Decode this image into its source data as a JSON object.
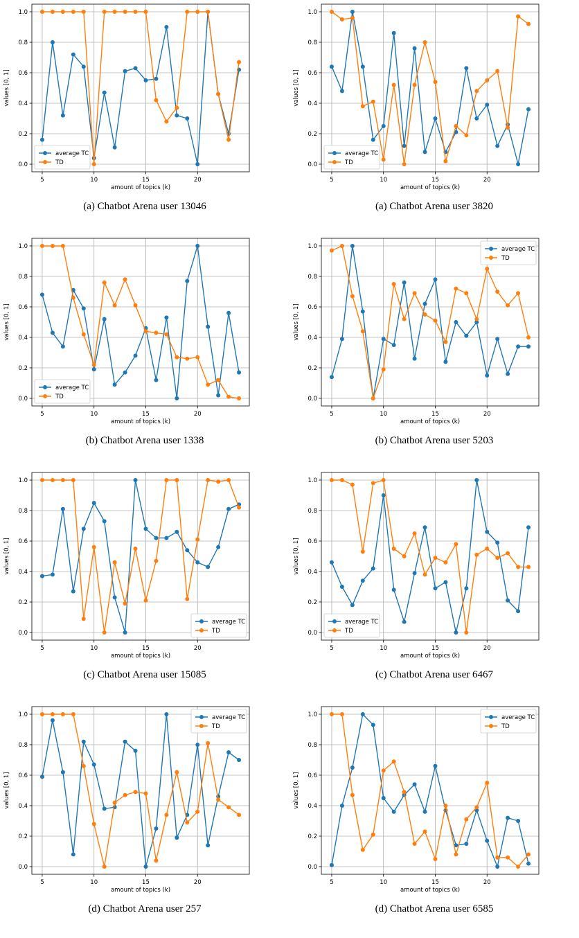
{
  "colors": {
    "tc": "#1f77b4",
    "td": "#ff7f0e",
    "grid": "#b0b0b0",
    "axis": "#000000"
  },
  "chart_data": [
    {
      "type": "line",
      "caption": "(a) Chatbot Arena user 13046",
      "xlabel": "amount of topics (k)",
      "ylabel": "values [0, 1]",
      "xlim": [
        4,
        25
      ],
      "ylim": [
        -0.05,
        1.05
      ],
      "xticks": [
        5,
        10,
        15,
        20
      ],
      "yticks": [
        "0.0",
        "0.2",
        "0.4",
        "0.6",
        "0.8",
        "1.0"
      ],
      "grid": true,
      "legend_position": "lower-left",
      "x": [
        5,
        6,
        7,
        8,
        9,
        10,
        11,
        12,
        13,
        14,
        15,
        16,
        17,
        18,
        19,
        20,
        21,
        22,
        23,
        24
      ],
      "series": [
        {
          "name": "average TC",
          "values": [
            0.16,
            0.8,
            0.32,
            0.72,
            0.64,
            0.04,
            0.47,
            0.11,
            0.61,
            0.63,
            0.55,
            0.56,
            0.9,
            0.32,
            0.3,
            0.0,
            1.0,
            0.46,
            0.2,
            0.62
          ]
        },
        {
          "name": "TD",
          "values": [
            1.0,
            1.0,
            1.0,
            1.0,
            1.0,
            0.0,
            1.0,
            1.0,
            1.0,
            1.0,
            1.0,
            0.42,
            0.28,
            0.37,
            1.0,
            1.0,
            1.0,
            0.46,
            0.16,
            0.67
          ]
        }
      ]
    },
    {
      "type": "line",
      "caption": "(a) Chatbot Arena user 3820",
      "xlabel": "amount of topics (k)",
      "ylabel": "values [0, 1]",
      "xlim": [
        4,
        25
      ],
      "ylim": [
        -0.05,
        1.05
      ],
      "xticks": [
        5,
        10,
        15,
        20
      ],
      "yticks": [
        "0.0",
        "0.2",
        "0.4",
        "0.6",
        "0.8",
        "1.0"
      ],
      "grid": true,
      "legend_position": "lower-left",
      "x": [
        5,
        6,
        7,
        8,
        9,
        10,
        11,
        12,
        13,
        14,
        15,
        16,
        17,
        18,
        19,
        20,
        21,
        22,
        23,
        24
      ],
      "series": [
        {
          "name": "average TC",
          "values": [
            0.64,
            0.48,
            1.0,
            0.64,
            0.16,
            0.25,
            0.86,
            0.12,
            0.76,
            0.08,
            0.3,
            0.08,
            0.21,
            0.63,
            0.3,
            0.39,
            0.12,
            0.26,
            0.0,
            0.36
          ]
        },
        {
          "name": "TD",
          "values": [
            1.0,
            0.95,
            0.96,
            0.38,
            0.41,
            0.03,
            0.52,
            0.0,
            0.52,
            0.8,
            0.54,
            0.02,
            0.25,
            0.19,
            0.48,
            0.55,
            0.61,
            0.24,
            0.97,
            0.92
          ]
        }
      ]
    },
    {
      "type": "line",
      "caption": "(b) Chatbot Arena user 1338",
      "xlabel": "amount of topics (k)",
      "ylabel": "values [0, 1]",
      "xlim": [
        4,
        25
      ],
      "ylim": [
        -0.05,
        1.05
      ],
      "xticks": [
        5,
        10,
        15,
        20
      ],
      "yticks": [
        "0.0",
        "0.2",
        "0.4",
        "0.6",
        "0.8",
        "1.0"
      ],
      "grid": true,
      "legend_position": "lower-left",
      "x": [
        5,
        6,
        7,
        8,
        9,
        10,
        11,
        12,
        13,
        14,
        15,
        16,
        17,
        18,
        19,
        20,
        21,
        22,
        23,
        24
      ],
      "series": [
        {
          "name": "average TC",
          "values": [
            0.68,
            0.43,
            0.34,
            0.71,
            0.59,
            0.19,
            0.52,
            0.09,
            0.17,
            0.28,
            0.46,
            0.12,
            0.53,
            0.0,
            0.77,
            1.0,
            0.47,
            0.02,
            0.56,
            0.17
          ]
        },
        {
          "name": "TD",
          "values": [
            1.0,
            1.0,
            1.0,
            0.66,
            0.42,
            0.22,
            0.76,
            0.61,
            0.78,
            0.61,
            0.44,
            0.43,
            0.42,
            0.27,
            0.26,
            0.27,
            0.09,
            0.12,
            0.01,
            0.0
          ]
        }
      ]
    },
    {
      "type": "line",
      "caption": "(b) Chatbot Arena user 5203",
      "xlabel": "amount of topics (k)",
      "ylabel": "values [0, 1]",
      "xlim": [
        4,
        25
      ],
      "ylim": [
        -0.05,
        1.05
      ],
      "xticks": [
        5,
        10,
        15,
        20
      ],
      "yticks": [
        "0.0",
        "0.2",
        "0.4",
        "0.6",
        "0.8",
        "1.0"
      ],
      "grid": true,
      "legend_position": "top-right",
      "x": [
        5,
        6,
        7,
        8,
        9,
        10,
        11,
        12,
        13,
        14,
        15,
        16,
        17,
        18,
        19,
        20,
        21,
        22,
        23,
        24
      ],
      "series": [
        {
          "name": "average TC",
          "values": [
            0.14,
            0.39,
            1.0,
            0.57,
            0.0,
            0.39,
            0.35,
            0.76,
            0.26,
            0.62,
            0.78,
            0.24,
            0.5,
            0.41,
            0.5,
            0.15,
            0.39,
            0.16,
            0.34,
            0.34
          ]
        },
        {
          "name": "TD",
          "values": [
            0.97,
            1.0,
            0.67,
            0.44,
            0.0,
            0.19,
            0.75,
            0.52,
            0.69,
            0.55,
            0.51,
            0.37,
            0.72,
            0.69,
            0.52,
            0.85,
            0.7,
            0.61,
            0.69,
            0.4
          ]
        }
      ]
    },
    {
      "type": "line",
      "caption": "(c) Chatbot Arena user 15085",
      "xlabel": "amount of topics (k)",
      "ylabel": "values [0, 1]",
      "xlim": [
        4,
        25
      ],
      "ylim": [
        -0.05,
        1.05
      ],
      "xticks": [
        5,
        10,
        15,
        20
      ],
      "yticks": [
        "0.0",
        "0.2",
        "0.4",
        "0.6",
        "0.8",
        "1.0"
      ],
      "grid": true,
      "legend_position": "lower-right",
      "x": [
        5,
        6,
        7,
        8,
        9,
        10,
        11,
        12,
        13,
        14,
        15,
        16,
        17,
        18,
        19,
        20,
        21,
        22,
        23,
        24
      ],
      "series": [
        {
          "name": "average TC",
          "values": [
            0.37,
            0.38,
            0.81,
            0.27,
            0.68,
            0.85,
            0.73,
            0.23,
            0.0,
            1.0,
            0.68,
            0.62,
            0.62,
            0.66,
            0.54,
            0.46,
            0.43,
            0.56,
            0.81,
            0.84
          ]
        },
        {
          "name": "TD",
          "values": [
            1.0,
            1.0,
            1.0,
            1.0,
            0.09,
            0.56,
            0.0,
            0.46,
            0.19,
            0.55,
            0.21,
            0.47,
            1.0,
            1.0,
            0.22,
            0.61,
            1.0,
            0.99,
            1.0,
            0.82
          ]
        }
      ]
    },
    {
      "type": "line",
      "caption": "(c) Chatbot Arena user 6467",
      "xlabel": "amount of topics (k)",
      "ylabel": "values [0, 1]",
      "xlim": [
        4,
        25
      ],
      "ylim": [
        -0.05,
        1.05
      ],
      "xticks": [
        5,
        10,
        15,
        20
      ],
      "yticks": [
        "0.0",
        "0.2",
        "0.4",
        "0.6",
        "0.8",
        "1.0"
      ],
      "grid": true,
      "legend_position": "lower-left",
      "x": [
        5,
        6,
        7,
        8,
        9,
        10,
        11,
        12,
        13,
        14,
        15,
        16,
        17,
        18,
        19,
        20,
        21,
        22,
        23,
        24
      ],
      "series": [
        {
          "name": "average TC",
          "values": [
            0.46,
            0.3,
            0.18,
            0.34,
            0.42,
            0.9,
            0.28,
            0.07,
            0.39,
            0.69,
            0.29,
            0.33,
            0.0,
            0.29,
            1.0,
            0.66,
            0.59,
            0.21,
            0.14,
            0.69
          ]
        },
        {
          "name": "TD",
          "values": [
            1.0,
            1.0,
            0.97,
            0.53,
            0.98,
            1.0,
            0.55,
            0.5,
            0.65,
            0.38,
            0.49,
            0.46,
            0.58,
            0.0,
            0.51,
            0.55,
            0.49,
            0.52,
            0.43,
            0.43
          ]
        }
      ]
    },
    {
      "type": "line",
      "caption": "(d) Chatbot Arena user 257",
      "xlabel": "amount of topics (k)",
      "ylabel": "values [0, 1]",
      "xlim": [
        4,
        25
      ],
      "ylim": [
        -0.05,
        1.05
      ],
      "xticks": [
        5,
        10,
        15,
        20
      ],
      "yticks": [
        "0.0",
        "0.2",
        "0.4",
        "0.6",
        "0.8",
        "1.0"
      ],
      "grid": true,
      "legend_position": "top-right",
      "x": [
        5,
        6,
        7,
        8,
        9,
        10,
        11,
        12,
        13,
        14,
        15,
        16,
        17,
        18,
        19,
        20,
        21,
        22,
        23,
        24
      ],
      "series": [
        {
          "name": "average TC",
          "values": [
            0.59,
            0.96,
            0.62,
            0.08,
            0.82,
            0.67,
            0.38,
            0.39,
            0.82,
            0.76,
            0.0,
            0.25,
            1.0,
            0.19,
            0.34,
            0.8,
            0.14,
            0.46,
            0.75,
            0.7
          ]
        },
        {
          "name": "TD",
          "values": [
            1.0,
            1.0,
            1.0,
            1.0,
            0.66,
            0.28,
            0.0,
            0.42,
            0.47,
            0.49,
            0.48,
            0.04,
            0.34,
            0.62,
            0.29,
            0.36,
            0.81,
            0.44,
            0.39,
            0.34
          ]
        }
      ]
    },
    {
      "type": "line",
      "caption": "(d) Chatbot Arena user 6585",
      "xlabel": "amount of topics (k)",
      "ylabel": "values [0, 1]",
      "xlim": [
        4,
        25
      ],
      "ylim": [
        -0.05,
        1.05
      ],
      "xticks": [
        5,
        10,
        15,
        20
      ],
      "yticks": [
        "0.0",
        "0.2",
        "0.4",
        "0.6",
        "0.8",
        "1.0"
      ],
      "grid": true,
      "legend_position": "top-right",
      "x": [
        5,
        6,
        7,
        8,
        9,
        10,
        11,
        12,
        13,
        14,
        15,
        16,
        17,
        18,
        19,
        20,
        21,
        22,
        23,
        24
      ],
      "series": [
        {
          "name": "average TC",
          "values": [
            0.01,
            0.4,
            0.65,
            1.0,
            0.93,
            0.45,
            0.36,
            0.47,
            0.54,
            0.36,
            0.66,
            0.37,
            0.14,
            0.15,
            0.37,
            0.17,
            0.0,
            0.32,
            0.3,
            0.02
          ]
        },
        {
          "name": "TD",
          "values": [
            1.0,
            1.0,
            0.47,
            0.11,
            0.21,
            0.63,
            0.69,
            0.49,
            0.15,
            0.23,
            0.05,
            0.4,
            0.08,
            0.31,
            0.39,
            0.55,
            0.06,
            0.06,
            0.0,
            0.08
          ]
        }
      ]
    }
  ]
}
